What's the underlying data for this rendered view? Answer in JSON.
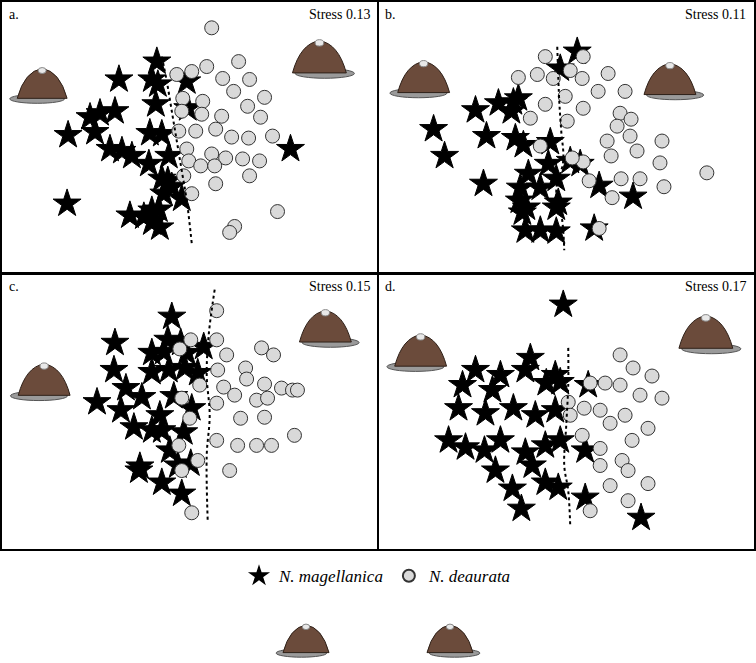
{
  "chart_data": [
    {
      "type": "scatter",
      "title": "a.",
      "annotations": [
        "Stress 0.13"
      ],
      "xlim": [
        0,
        376
      ],
      "ylim": [
        273,
        0
      ],
      "tick_labels": false,
      "legend": "bottom",
      "series": [
        {
          "name": "N. magellanica",
          "color": "#000000",
          "marker": "star",
          "x": [
            155,
            117,
            150,
            154,
            156,
            113,
            98,
            88,
            186,
            66,
            93,
            108,
            130,
            148,
            160,
            167,
            147,
            160,
            166,
            170,
            162,
            180,
            65,
            128,
            150,
            157,
            150,
            142,
            158,
            289,
            120,
            185
          ],
          "y": [
            60,
            78,
            78,
            103,
            83,
            110,
            112,
            116,
            107,
            134,
            131,
            148,
            155,
            132,
            133,
            155,
            163,
            178,
            180,
            186,
            193,
            198,
            203,
            215,
            210,
            209,
            222,
            216,
            227,
            148,
            150,
            80
          ]
        },
        {
          "name": "N. deaurata",
          "color": "#d9d9d9",
          "marker": "circle",
          "x": [
            210,
            175,
            190,
            205,
            237,
            221,
            248,
            181,
            201,
            232,
            180,
            200,
            220,
            263,
            246,
            259,
            177,
            194,
            214,
            230,
            247,
            271,
            185,
            210,
            224,
            187,
            199,
            213,
            241,
            258,
            182,
            214,
            248,
            190,
            276,
            233,
            228
          ],
          "y": [
            26,
            73,
            70,
            65,
            60,
            77,
            78,
            97,
            100,
            90,
            110,
            113,
            115,
            96,
            105,
            116,
            130,
            130,
            128,
            136,
            137,
            135,
            148,
            153,
            157,
            160,
            165,
            165,
            158,
            160,
            175,
            183,
            175,
            193,
            211,
            226,
            232
          ]
        },
        {
          "type": "line",
          "line_style": "dotted",
          "color": "#000000",
          "x": [
            160,
            165,
            170,
            175,
            180,
            185,
            190
          ],
          "y": [
            55,
            80,
            110,
            140,
            170,
            200,
            243
          ]
        }
      ]
    },
    {
      "type": "scatter",
      "title": "b.",
      "annotations": [
        "Stress 0.11"
      ],
      "xlim": [
        0,
        376
      ],
      "ylim": [
        273,
        0
      ],
      "tick_labels": false,
      "legend": "bottom",
      "series": [
        {
          "name": "N. magellanica",
          "color": "#000000",
          "marker": "star",
          "x": [
            199,
            182,
            97,
            120,
            135,
            140,
            133,
            55,
            108,
            137,
            145,
            172,
            66,
            170,
            192,
            202,
            150,
            105,
            142,
            162,
            178,
            221,
            141,
            148,
            178,
            180,
            144,
            255,
            147,
            162,
            178,
            216
          ],
          "y": [
            50,
            67,
            109,
            102,
            101,
            97,
            110,
            128,
            135,
            137,
            144,
            141,
            155,
            163,
            160,
            163,
            173,
            183,
            187,
            187,
            178,
            185,
            200,
            207,
            207,
            202,
            212,
            196,
            230,
            230,
            231,
            228
          ]
        },
        {
          "name": "N. deaurata",
          "color": "#d9d9d9",
          "marker": "circle",
          "x": [
            167,
            205,
            140,
            159,
            175,
            192,
            204,
            230,
            220,
            247,
            167,
            187,
            205,
            242,
            253,
            239,
            152,
            189,
            162,
            229,
            252,
            259,
            284,
            233,
            205,
            194,
            282,
            329,
            211,
            243,
            262,
            286,
            234,
            221
          ],
          "y": [
            55,
            55,
            76,
            73,
            77,
            69,
            77,
            72,
            90,
            90,
            103,
            95,
            107,
            112,
            118,
            125,
            117,
            120,
            145,
            140,
            135,
            150,
            140,
            155,
            161,
            157,
            162,
            172,
            180,
            178,
            178,
            186,
            197,
            228
          ]
        },
        {
          "type": "line",
          "line_style": "dotted",
          "color": "#000000",
          "x": [
            179,
            181,
            183,
            185,
            178,
            184,
            186
          ],
          "y": [
            45,
            100,
            130,
            160,
            190,
            220,
            250
          ]
        }
      ]
    },
    {
      "type": "scatter",
      "title": "c.",
      "annotations": [
        "Stress 0.15"
      ],
      "xlim": [
        0,
        376
      ],
      "ylim": [
        273,
        0
      ],
      "tick_labels": false,
      "legend": "bottom",
      "series": [
        {
          "name": "N. magellanica",
          "color": "#000000",
          "marker": "star",
          "x": [
            170,
            166,
            179,
            150,
            162,
            185,
            202,
            183,
            167,
            150,
            196,
            112,
            113,
            124,
            95,
            140,
            172,
            119,
            158,
            190,
            132,
            150,
            182,
            168,
            138,
            176,
            189,
            160,
            180,
            137,
            160
          ],
          "y": [
            42,
            65,
            68,
            78,
            77,
            78,
            72,
            93,
            95,
            97,
            98,
            95,
            68,
            113,
            127,
            122,
            121,
            135,
            140,
            133,
            152,
            155,
            157,
            175,
            191,
            190,
            188,
            207,
            218,
            195,
            155
          ]
        },
        {
          "name": "N. deaurata",
          "color": "#d9d9d9",
          "marker": "circle",
          "x": [
            215,
            189,
            215,
            225,
            178,
            216,
            244,
            260,
            272,
            198,
            222,
            245,
            263,
            280,
            291,
            296,
            180,
            215,
            233,
            255,
            266,
            188,
            215,
            239,
            263,
            293,
            177,
            236,
            255,
            270,
            196,
            228,
            180,
            190
          ],
          "y": [
            36,
            65,
            65,
            80,
            74,
            95,
            93,
            73,
            80,
            110,
            112,
            104,
            109,
            113,
            115,
            115,
            123,
            128,
            120,
            125,
            123,
            143,
            165,
            143,
            142,
            160,
            170,
            170,
            170,
            170,
            185,
            195,
            195,
            237
          ]
        },
        {
          "type": "line",
          "line_style": "dotted",
          "color": "#000000",
          "x": [
            213,
            207,
            205,
            208,
            205,
            206
          ],
          "y": [
            15,
            60,
            100,
            140,
            180,
            245
          ]
        }
      ]
    },
    {
      "type": "scatter",
      "title": "d.",
      "annotations": [
        "Stress 0.17"
      ],
      "xlim": [
        0,
        376
      ],
      "ylim": [
        273,
        0
      ],
      "tick_labels": false,
      "legend": "bottom",
      "series": [
        {
          "name": "N. magellanica",
          "color": "#000000",
          "marker": "star",
          "x": [
            185,
            152,
            97,
            122,
            147,
            177,
            84,
            114,
            168,
            182,
            210,
            80,
            107,
            135,
            157,
            177,
            70,
            87,
            106,
            122,
            147,
            167,
            182,
            207,
            117,
            154,
            167,
            180,
            134,
            207,
            143,
            263
          ],
          "y": [
            30,
            83,
            95,
            100,
            95,
            100,
            110,
            115,
            108,
            107,
            110,
            133,
            138,
            133,
            140,
            135,
            165,
            172,
            175,
            165,
            177,
            170,
            165,
            175,
            195,
            190,
            207,
            212,
            213,
            222,
            233,
            242
          ]
        },
        {
          "name": "N. deaurata",
          "color": "#d9d9d9",
          "marker": "circle",
          "x": [
            242,
            212,
            227,
            242,
            255,
            274,
            190,
            206,
            262,
            284,
            222,
            232,
            247,
            270,
            204,
            222,
            254,
            222,
            244,
            250,
            232,
            270,
            250,
            212,
            192
          ],
          "y": [
            80,
            108,
            108,
            110,
            93,
            101,
            127,
            133,
            120,
            123,
            135,
            148,
            140,
            153,
            160,
            173,
            165,
            190,
            185,
            195,
            210,
            208,
            225,
            235,
            140
          ]
        },
        {
          "type": "line",
          "line_style": "dotted",
          "color": "#000000",
          "x": [
            190,
            190,
            188,
            186,
            190,
            192
          ],
          "y": [
            73,
            110,
            150,
            190,
            215,
            250
          ]
        }
      ]
    }
  ]
}
